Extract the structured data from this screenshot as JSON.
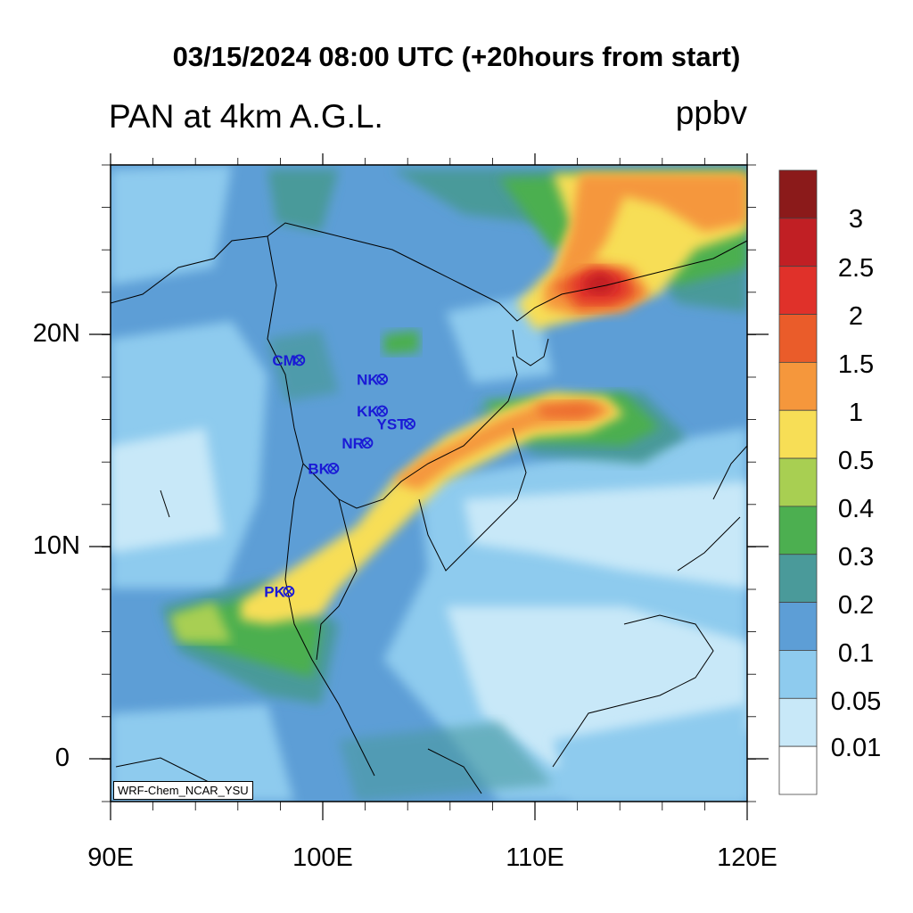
{
  "title": "03/15/2024 08:00 UTC (+20hours from start)",
  "subtitle_left": "PAN at 4km A.G.L.",
  "units": "ppbv",
  "credit": "WRF-Chem_NCAR_YSU",
  "x_ticks": [
    "90E",
    "100E",
    "110E",
    "120E"
  ],
  "y_ticks": [
    "20N",
    "10N",
    "0"
  ],
  "colorbar": {
    "labels": [
      "3",
      "2.5",
      "2",
      "1.5",
      "1",
      "0.5",
      "0.4",
      "0.3",
      "0.2",
      "0.1",
      "0.05",
      "0.01"
    ],
    "colors": [
      "#8b1a1a",
      "#c11f24",
      "#e0312a",
      "#ea5c2a",
      "#f5973c",
      "#f7de56",
      "#a8cf52",
      "#4caf50",
      "#4a9a9a",
      "#5d9ed6",
      "#8ecbee",
      "#c8e8f8",
      "#ffffff"
    ]
  },
  "stations": [
    {
      "name": "CM",
      "lon": 98.9,
      "lat": 18.8
    },
    {
      "name": "NK",
      "lon": 102.8,
      "lat": 17.9
    },
    {
      "name": "KK",
      "lon": 102.8,
      "lat": 16.4
    },
    {
      "name": "YST",
      "lon": 104.1,
      "lat": 15.8
    },
    {
      "name": "NR",
      "lon": 102.1,
      "lat": 14.9
    },
    {
      "name": "BK",
      "lon": 100.5,
      "lat": 13.7
    },
    {
      "name": "PK",
      "lon": 98.4,
      "lat": 7.9
    }
  ],
  "map": {
    "lon_range": [
      90,
      120
    ],
    "lat_range": [
      -2,
      28
    ],
    "field": "PAN",
    "level": "4km A.G.L."
  }
}
